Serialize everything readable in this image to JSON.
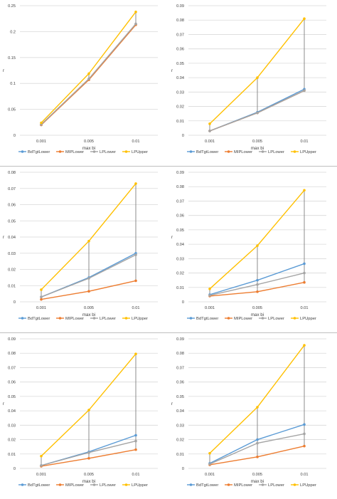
{
  "colors": {
    "BdTgtLower": "#5b9bd5",
    "MIPLower": "#ed7d31",
    "LPLower": "#a5a5a5",
    "LPUpper": "#ffc000",
    "gap_line": "#7f7f7f",
    "grid": "#d9d9d9"
  },
  "chart_data": [
    {
      "type": "line",
      "categories": [
        "0.001",
        "0.005",
        "0.01"
      ],
      "xlabel": "max bi",
      "ylabel": "r",
      "ylim": [
        0,
        0.25
      ],
      "yticks": [
        "0",
        "0.05",
        "0.1",
        "0.15",
        "0.2",
        "0.25"
      ],
      "grid": "horizontal",
      "legend": "bottom",
      "series": [
        {
          "name": "BdTgtLower",
          "values": [
            0.02,
            0.108,
            0.214
          ]
        },
        {
          "name": "MIPLower",
          "values": [
            0.02,
            0.107,
            0.213
          ]
        },
        {
          "name": "LPLower",
          "values": [
            0.021,
            0.109,
            0.215
          ]
        },
        {
          "name": "LPUpper",
          "values": [
            0.024,
            0.119,
            0.238
          ]
        }
      ]
    },
    {
      "type": "line",
      "categories": [
        "0.001",
        "0.005",
        "0.01"
      ],
      "xlabel": "max bi",
      "ylabel": "r",
      "ylim": [
        0,
        0.09
      ],
      "yticks": [
        "0",
        "0.01",
        "0.02",
        "0.03",
        "0.04",
        "0.05",
        "0.06",
        "0.07",
        "0.08",
        "0.09"
      ],
      "grid": "horizontal",
      "legend": "bottom",
      "series": [
        {
          "name": "BdTgtLower",
          "values": [
            0.003,
            0.016,
            0.032
          ]
        },
        {
          "name": "MIPLower",
          "values": [
            0.003,
            0.0155,
            0.031
          ]
        },
        {
          "name": "LPLower",
          "values": [
            0.003,
            0.0155,
            0.031
          ]
        },
        {
          "name": "LPUpper",
          "values": [
            0.008,
            0.04,
            0.081
          ]
        }
      ]
    },
    {
      "type": "line",
      "categories": [
        "0.001",
        "0.005",
        "0.01"
      ],
      "xlabel": "max bi",
      "ylabel": "r",
      "ylim": [
        0,
        0.08
      ],
      "yticks": [
        "0",
        "0.01",
        "0.02",
        "0.03",
        "0.04",
        "0.05",
        "0.06",
        "0.07",
        "0.08"
      ],
      "grid": "horizontal",
      "legend": "bottom",
      "series": [
        {
          "name": "BdTgtLower",
          "values": [
            0.003,
            0.015,
            0.03
          ]
        },
        {
          "name": "MIPLower",
          "values": [
            0.0015,
            0.0065,
            0.013
          ]
        },
        {
          "name": "LPLower",
          "values": [
            0.003,
            0.0145,
            0.029
          ]
        },
        {
          "name": "LPUpper",
          "values": [
            0.0075,
            0.0375,
            0.073
          ]
        }
      ]
    },
    {
      "type": "line",
      "categories": [
        "0.001",
        "0.005",
        "0.01"
      ],
      "xlabel": "max bi",
      "ylabel": "r",
      "ylim": [
        0,
        0.09
      ],
      "yticks": [
        "0",
        "0.01",
        "0.02",
        "0.03",
        "0.04",
        "0.05",
        "0.06",
        "0.07",
        "0.08",
        "0.09"
      ],
      "grid": "horizontal",
      "legend": "bottom",
      "series": [
        {
          "name": "BdTgtLower",
          "values": [
            0.005,
            0.015,
            0.0265
          ]
        },
        {
          "name": "MIPLower",
          "values": [
            0.004,
            0.007,
            0.0135
          ]
        },
        {
          "name": "LPLower",
          "values": [
            0.0045,
            0.012,
            0.02
          ]
        },
        {
          "name": "LPUpper",
          "values": [
            0.009,
            0.039,
            0.0775
          ]
        }
      ]
    },
    {
      "type": "line",
      "categories": [
        "0.001",
        "0.005",
        "0.01"
      ],
      "xlabel": "max bi",
      "ylabel": "r",
      "ylim": [
        0,
        0.09
      ],
      "yticks": [
        "0",
        "0.01",
        "0.02",
        "0.03",
        "0.04",
        "0.05",
        "0.06",
        "0.07",
        "0.08",
        "0.09"
      ],
      "grid": "horizontal",
      "legend": "bottom",
      "series": [
        {
          "name": "BdTgtLower",
          "values": [
            0.002,
            0.0115,
            0.023
          ]
        },
        {
          "name": "MIPLower",
          "values": [
            0.0015,
            0.007,
            0.013
          ]
        },
        {
          "name": "LPLower",
          "values": [
            0.002,
            0.011,
            0.019
          ]
        },
        {
          "name": "LPUpper",
          "values": [
            0.0085,
            0.0405,
            0.0795
          ]
        }
      ]
    },
    {
      "type": "line",
      "categories": [
        "0.001",
        "0.005",
        "0.01"
      ],
      "xlabel": "max bi",
      "ylabel": "r",
      "ylim": [
        0,
        0.09
      ],
      "yticks": [
        "0",
        "0.01",
        "0.02",
        "0.03",
        "0.04",
        "0.05",
        "0.06",
        "0.07",
        "0.08",
        "0.09"
      ],
      "grid": "horizontal",
      "legend": "bottom",
      "series": [
        {
          "name": "BdTgtLower",
          "values": [
            0.0035,
            0.02,
            0.0305
          ]
        },
        {
          "name": "MIPLower",
          "values": [
            0.0025,
            0.008,
            0.0155
          ]
        },
        {
          "name": "LPLower",
          "values": [
            0.003,
            0.0175,
            0.024
          ]
        },
        {
          "name": "LPUpper",
          "values": [
            0.0105,
            0.0425,
            0.0855
          ]
        }
      ]
    }
  ]
}
